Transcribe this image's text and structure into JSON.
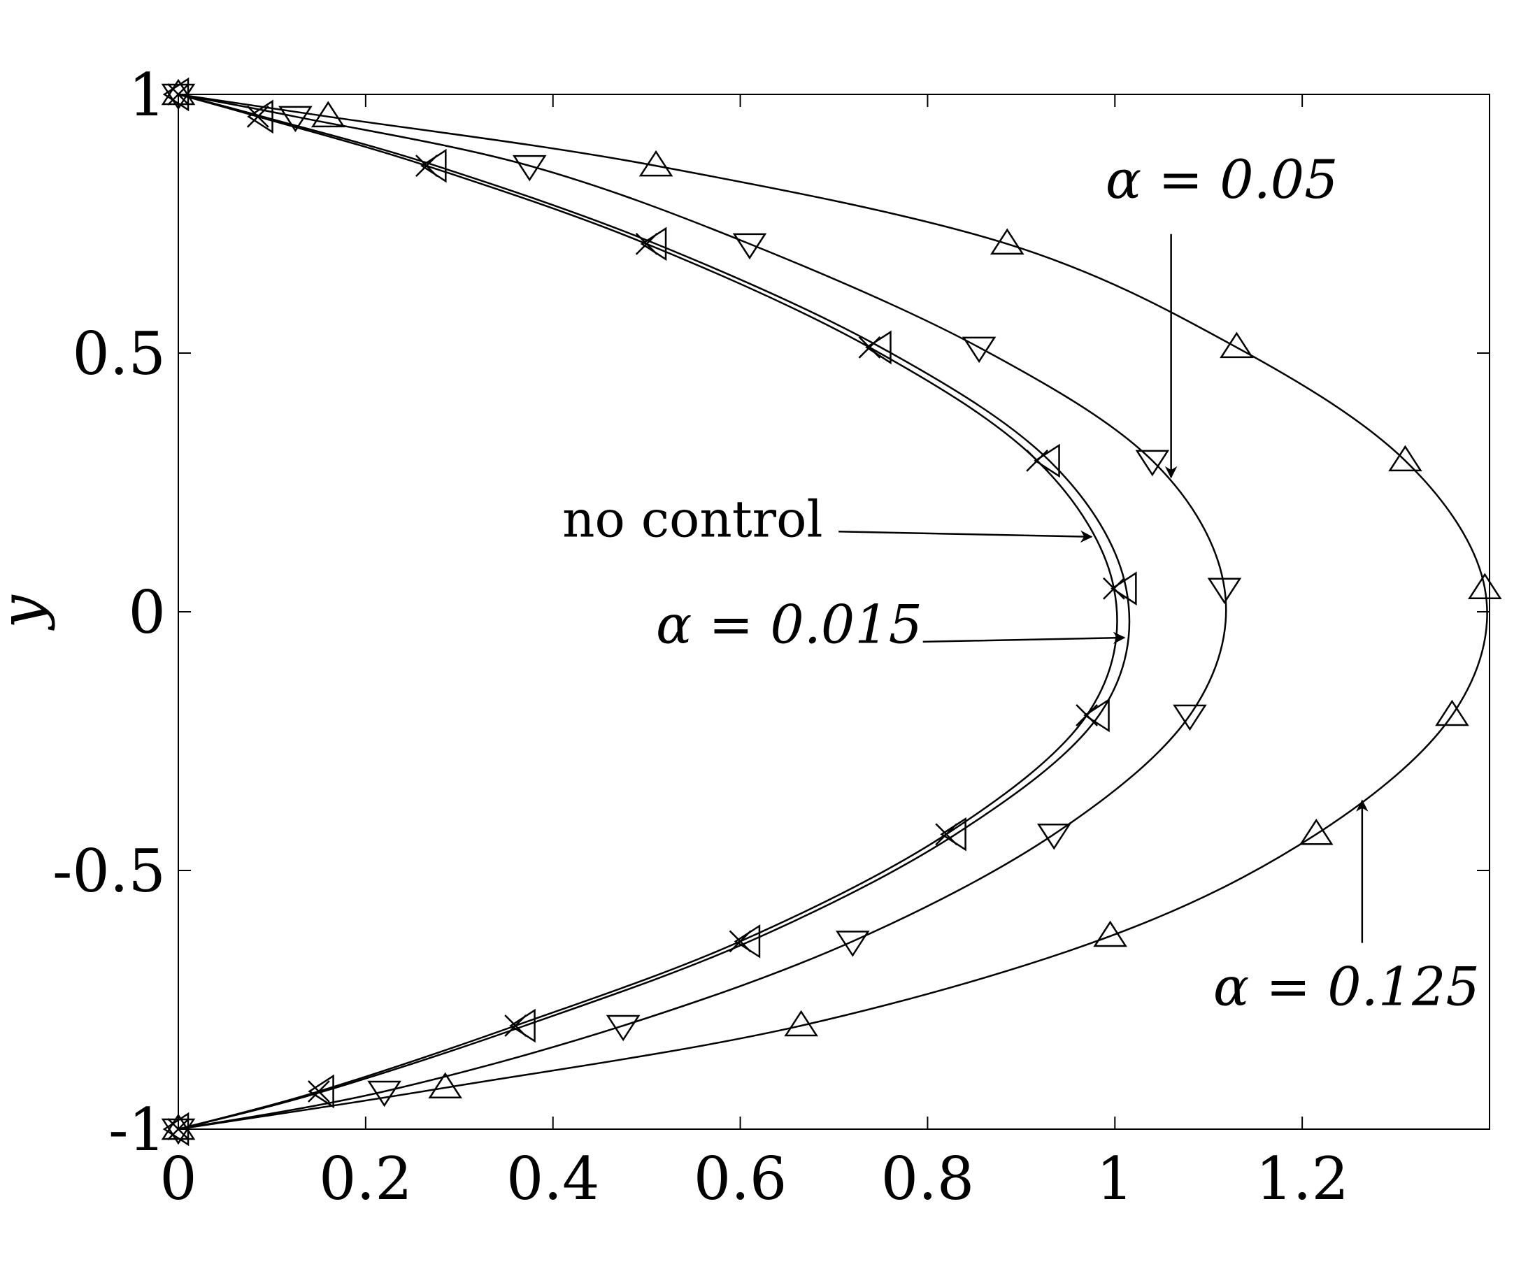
{
  "chart_data": {
    "type": "line",
    "title": "",
    "xlabel": "",
    "ylabel": "y",
    "xlim": [
      0,
      1.4
    ],
    "ylim": [
      -1,
      1
    ],
    "grid": false,
    "x_ticks": [
      "0",
      "0.2",
      "0.4",
      "0.6",
      "0.8",
      "1",
      "1.2"
    ],
    "y_ticks": [
      "-1",
      "-0.5",
      "0",
      "0.5",
      "1"
    ],
    "colors": {
      "line": "#000000",
      "background": "#ffffff"
    },
    "series": [
      {
        "marker": "x",
        "points": [
          [
            0.0,
            1.0
          ],
          [
            0.085,
            0.957
          ],
          [
            0.265,
            0.862
          ],
          [
            0.5,
            0.711
          ],
          [
            0.738,
            0.511
          ],
          [
            0.917,
            0.292
          ],
          [
            0.999,
            0.045
          ],
          [
            0.97,
            -0.2
          ],
          [
            0.82,
            -0.43
          ],
          [
            0.6,
            -0.637
          ],
          [
            0.36,
            -0.8
          ],
          [
            0.15,
            -0.927
          ],
          [
            0.0,
            -1.0
          ]
        ]
      },
      {
        "marker": "triangle-left",
        "points": [
          [
            0.0,
            1.0
          ],
          [
            0.09,
            0.957
          ],
          [
            0.275,
            0.862
          ],
          [
            0.51,
            0.711
          ],
          [
            0.75,
            0.511
          ],
          [
            0.93,
            0.292
          ],
          [
            1.012,
            0.045
          ],
          [
            0.983,
            -0.2
          ],
          [
            0.83,
            -0.43
          ],
          [
            0.61,
            -0.637
          ],
          [
            0.37,
            -0.8
          ],
          [
            0.155,
            -0.927
          ],
          [
            0.0,
            -1.0
          ]
        ]
      },
      {
        "marker": "triangle-down",
        "points": [
          [
            0.0,
            1.0
          ],
          [
            0.125,
            0.957
          ],
          [
            0.375,
            0.862
          ],
          [
            0.61,
            0.711
          ],
          [
            0.855,
            0.511
          ],
          [
            1.04,
            0.292
          ],
          [
            1.117,
            0.045
          ],
          [
            1.08,
            -0.2
          ],
          [
            0.935,
            -0.43
          ],
          [
            0.72,
            -0.637
          ],
          [
            0.475,
            -0.8
          ],
          [
            0.22,
            -0.927
          ],
          [
            0.0,
            -1.0
          ]
        ]
      },
      {
        "marker": "triangle-up",
        "points": [
          [
            0.0,
            1.0
          ],
          [
            0.16,
            0.957
          ],
          [
            0.51,
            0.862
          ],
          [
            0.885,
            0.711
          ],
          [
            1.13,
            0.511
          ],
          [
            1.31,
            0.292
          ],
          [
            1.395,
            0.045
          ],
          [
            1.36,
            -0.2
          ],
          [
            1.215,
            -0.43
          ],
          [
            0.995,
            -0.627
          ],
          [
            0.665,
            -0.8
          ],
          [
            0.285,
            -0.92
          ],
          [
            0.0,
            -1.0
          ]
        ]
      }
    ],
    "annotations": [
      {
        "label": "no control",
        "text_at": [
          0.41,
          0.145
        ],
        "arrow_from": [
          0.705,
          0.155
        ],
        "arrow_to": [
          0.975,
          0.145
        ]
      },
      {
        "label": "α = 0.015",
        "text_at": [
          0.51,
          -0.06
        ],
        "arrow_from": [
          0.795,
          -0.058
        ],
        "arrow_to": [
          1.01,
          -0.05
        ]
      },
      {
        "label": "α = 0.05",
        "text_at": [
          0.99,
          0.8
        ],
        "arrow_from": [
          1.06,
          0.73
        ],
        "arrow_to": [
          1.06,
          0.26
        ]
      },
      {
        "label": "α = 0.125",
        "text_at": [
          1.105,
          -0.76
        ],
        "arrow_from": [
          1.264,
          -0.64
        ],
        "arrow_to": [
          1.264,
          -0.365
        ]
      }
    ]
  }
}
